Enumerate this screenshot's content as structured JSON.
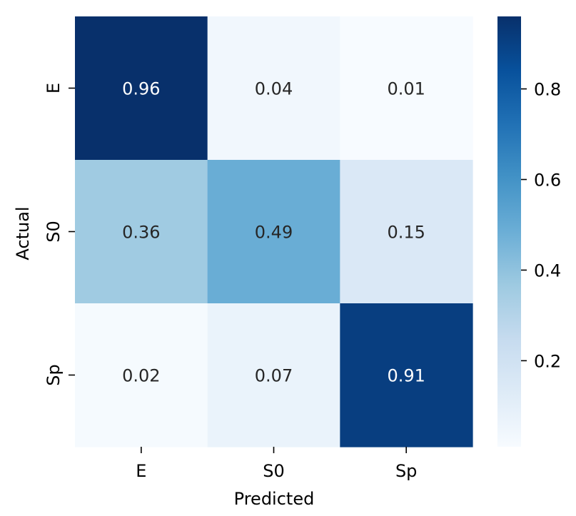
{
  "chart_data": {
    "type": "heatmap",
    "x_categories": [
      "E",
      "S0",
      "Sp"
    ],
    "y_categories": [
      "E",
      "S0",
      "Sp"
    ],
    "values": [
      [
        0.96,
        0.04,
        0.01
      ],
      [
        0.36,
        0.49,
        0.15
      ],
      [
        0.02,
        0.07,
        0.91
      ]
    ],
    "value_labels": [
      [
        "0.96",
        "0.04",
        "0.01"
      ],
      [
        "0.36",
        "0.49",
        "0.15"
      ],
      [
        "0.02",
        "0.07",
        "0.91"
      ]
    ],
    "xlabel": "Predicted",
    "ylabel": "Actual",
    "colormap": "Blues",
    "colorbar": {
      "vmin": 0.01,
      "vmax": 0.96,
      "ticks": [
        0.2,
        0.4,
        0.6,
        0.8
      ],
      "tick_labels": [
        "0.2",
        "0.4",
        "0.6",
        "0.8"
      ]
    },
    "text_colors": {
      "dark": "#262626",
      "light": "#ffffff"
    }
  }
}
